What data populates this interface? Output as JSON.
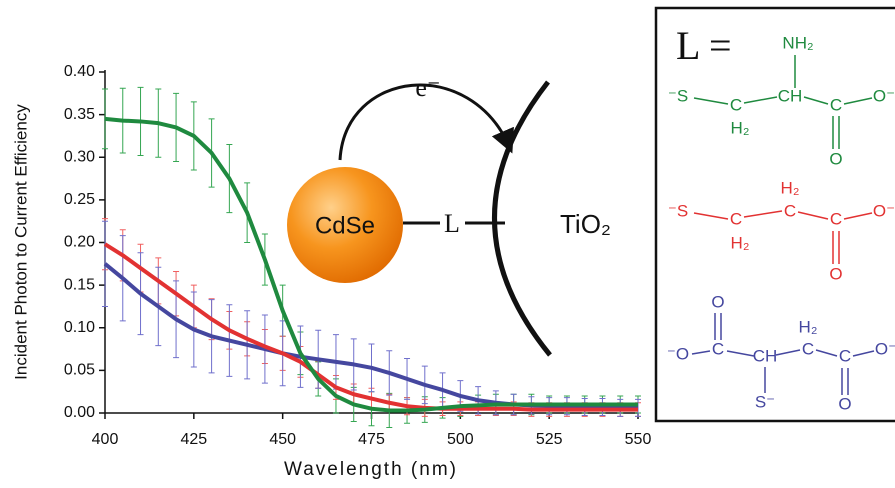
{
  "chart_data": {
    "type": "line",
    "xlabel": "Wavelength (nm)",
    "ylabel": "Incident Photon to Current Efficiency",
    "x": [
      400,
      405,
      410,
      415,
      420,
      425,
      430,
      435,
      440,
      445,
      450,
      455,
      460,
      465,
      470,
      475,
      480,
      485,
      490,
      495,
      500,
      505,
      510,
      515,
      520,
      525,
      530,
      535,
      540,
      545,
      550
    ],
    "series": [
      {
        "color": "#1f8a3f",
        "error_color": "#35a652",
        "values": [
          0.345,
          0.343,
          0.342,
          0.34,
          0.335,
          0.325,
          0.305,
          0.275,
          0.235,
          0.18,
          0.12,
          0.07,
          0.04,
          0.02,
          0.01,
          0.005,
          0.003,
          0.003,
          0.004,
          0.006,
          0.008,
          0.009,
          0.01,
          0.01,
          0.01,
          0.01,
          0.01,
          0.01,
          0.01,
          0.01,
          0.01
        ],
        "errors": [
          0.035,
          0.038,
          0.04,
          0.04,
          0.04,
          0.04,
          0.04,
          0.04,
          0.035,
          0.03,
          0.03,
          0.025,
          0.02,
          0.02,
          0.02,
          0.02,
          0.02,
          0.015,
          0.015,
          0.012,
          0.012,
          0.012,
          0.012,
          0.012,
          0.012,
          0.01,
          0.01,
          0.01,
          0.01,
          0.01,
          0.01
        ]
      },
      {
        "color": "#e23232",
        "error_color": "#f06060",
        "values": [
          0.198,
          0.185,
          0.17,
          0.155,
          0.14,
          0.125,
          0.11,
          0.097,
          0.087,
          0.078,
          0.07,
          0.06,
          0.045,
          0.03,
          0.022,
          0.017,
          0.012,
          0.008,
          0.006,
          0.005,
          0.005,
          0.005,
          0.005,
          0.005,
          0.004,
          0.004,
          0.004,
          0.004,
          0.004,
          0.004,
          0.004
        ],
        "errors": [
          0.03,
          0.03,
          0.028,
          0.027,
          0.026,
          0.025,
          0.024,
          0.022,
          0.02,
          0.02,
          0.02,
          0.018,
          0.016,
          0.014,
          0.012,
          0.012,
          0.01,
          0.01,
          0.01,
          0.008,
          0.008,
          0.008,
          0.008,
          0.008,
          0.008,
          0.008,
          0.008,
          0.008,
          0.008,
          0.008,
          0.008
        ]
      },
      {
        "color": "#45479f",
        "error_color": "#7070cc",
        "values": [
          0.175,
          0.158,
          0.14,
          0.125,
          0.11,
          0.098,
          0.09,
          0.085,
          0.08,
          0.075,
          0.07,
          0.066,
          0.063,
          0.06,
          0.057,
          0.053,
          0.047,
          0.04,
          0.033,
          0.027,
          0.02,
          0.015,
          0.012,
          0.01,
          0.009,
          0.008,
          0.008,
          0.007,
          0.007,
          0.006,
          0.006
        ],
        "errors": [
          0.05,
          0.05,
          0.048,
          0.046,
          0.045,
          0.044,
          0.043,
          0.042,
          0.04,
          0.04,
          0.038,
          0.036,
          0.034,
          0.032,
          0.03,
          0.028,
          0.026,
          0.024,
          0.022,
          0.02,
          0.018,
          0.016,
          0.014,
          0.012,
          0.01,
          0.01,
          0.01,
          0.01,
          0.01,
          0.01,
          0.01
        ]
      }
    ],
    "xlim": [
      400,
      550
    ],
    "xticks": [
      400,
      425,
      450,
      475,
      500,
      525,
      550
    ],
    "ylim": [
      0,
      0.4
    ],
    "yticks": [
      {
        "value": 0,
        "label": "0.00"
      },
      0.05,
      {
        "value": 0.1,
        "label": "0.10"
      },
      0.15,
      {
        "value": 0.2,
        "label": "0.20"
      },
      0.25,
      {
        "value": 0.3,
        "label": "0.30"
      },
      0.35,
      {
        "value": 0.4,
        "label": "0.40"
      }
    ]
  },
  "diagram": {
    "nanocrystal": "CdSe",
    "linker": "L",
    "electrode": "TiO₂",
    "electron": "e⁻"
  },
  "ligand_panel": {
    "heading": "L =",
    "ligands": [
      {
        "atoms": [
          "NH₂",
          "⁻S",
          "C",
          "H₂",
          "CH",
          "C",
          "O⁻",
          "O"
        ]
      },
      {
        "atoms": [
          "⁻S",
          "C",
          "H₂",
          "H₂",
          "C",
          "C",
          "O⁻",
          "O"
        ]
      },
      {
        "atoms": [
          "O",
          "⁻O",
          "C",
          "CH",
          "S⁻",
          "H₂",
          "C",
          "C",
          "O⁻",
          "O"
        ]
      }
    ]
  }
}
